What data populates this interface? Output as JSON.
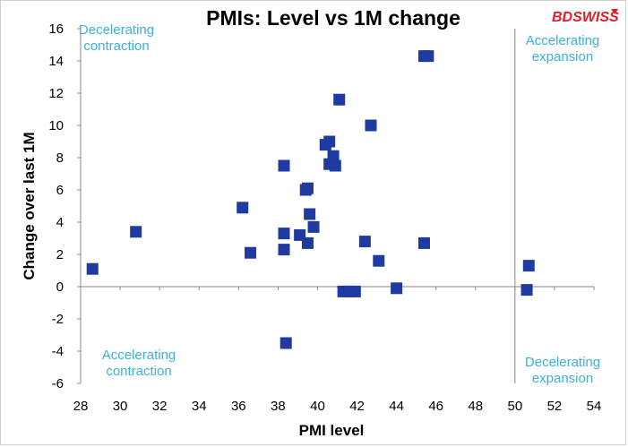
{
  "chart_data": {
    "type": "scatter",
    "title": "PMIs:  Level vs 1M change",
    "xlabel": "PMI level",
    "ylabel": "Change over last 1M",
    "xlim": [
      28,
      54
    ],
    "ylim": [
      -6,
      16
    ],
    "x_ticks": [
      "28",
      "30",
      "32",
      "34",
      "36",
      "38",
      "40",
      "42",
      "44",
      "46",
      "48",
      "50",
      "52",
      "54"
    ],
    "y_ticks": [
      "-6",
      "-4",
      "-2",
      "0",
      "2",
      "4",
      "6",
      "8",
      "10",
      "12",
      "14",
      "16"
    ],
    "grid": false,
    "legend": "none",
    "series": [
      {
        "marker": "square",
        "color": "#1f3aa0",
        "points": [
          {
            "x": 28.6,
            "y": 1.1
          },
          {
            "x": 30.8,
            "y": 3.4
          },
          {
            "x": 36.2,
            "y": 4.9
          },
          {
            "x": 36.6,
            "y": 2.1
          },
          {
            "x": 38.3,
            "y": 7.5
          },
          {
            "x": 38.3,
            "y": 3.3
          },
          {
            "x": 38.3,
            "y": 2.3
          },
          {
            "x": 38.4,
            "y": -3.5
          },
          {
            "x": 39.1,
            "y": 3.2
          },
          {
            "x": 39.4,
            "y": 6.0
          },
          {
            "x": 39.5,
            "y": 6.1
          },
          {
            "x": 39.5,
            "y": 2.7
          },
          {
            "x": 39.6,
            "y": 4.5
          },
          {
            "x": 39.8,
            "y": 3.7
          },
          {
            "x": 40.4,
            "y": 8.8
          },
          {
            "x": 40.6,
            "y": 9.0
          },
          {
            "x": 40.6,
            "y": 7.6
          },
          {
            "x": 40.8,
            "y": 8.1
          },
          {
            "x": 40.9,
            "y": 7.5
          },
          {
            "x": 41.1,
            "y": 11.6
          },
          {
            "x": 41.3,
            "y": -0.3
          },
          {
            "x": 41.6,
            "y": -0.3
          },
          {
            "x": 41.9,
            "y": -0.3
          },
          {
            "x": 42.4,
            "y": 2.8
          },
          {
            "x": 42.7,
            "y": 10.0
          },
          {
            "x": 43.1,
            "y": 1.6
          },
          {
            "x": 44.0,
            "y": -0.1
          },
          {
            "x": 45.4,
            "y": 2.7
          },
          {
            "x": 45.4,
            "y": 14.3
          },
          {
            "x": 45.6,
            "y": 14.3
          },
          {
            "x": 50.6,
            "y": -0.2
          },
          {
            "x": 50.7,
            "y": 1.3
          }
        ]
      }
    ],
    "annotations": [
      {
        "lines": [
          "Decelerating",
          "contraction"
        ],
        "color": "#3bb0d8"
      },
      {
        "lines": [
          "Accelerating",
          "expansion"
        ],
        "color": "#3bb0d8"
      },
      {
        "lines": [
          "Accelerating",
          "contraction"
        ],
        "color": "#3bb0d8"
      },
      {
        "lines": [
          "Decelerating",
          "expansion"
        ],
        "color": "#3bb0d8"
      }
    ],
    "reference_lines": {
      "x": 50,
      "y": 0
    }
  },
  "logo": {
    "text": "BDSWISS",
    "color": "#e01e26"
  }
}
